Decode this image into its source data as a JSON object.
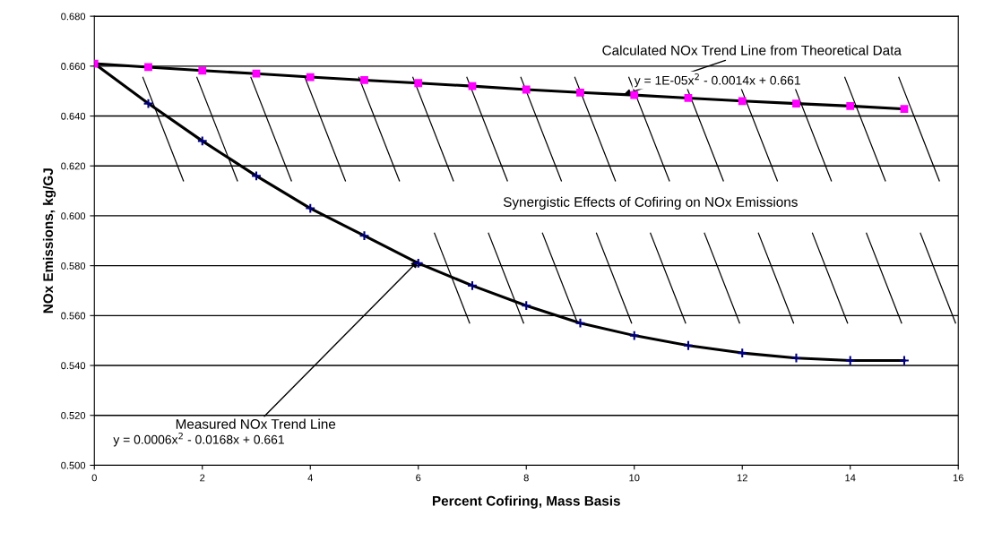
{
  "chart_data": {
    "type": "scatter",
    "xlabel": "Percent Cofiring, Mass Basis",
    "ylabel": "NOx Emissions, kg/GJ",
    "series": [
      {
        "type": "line",
        "color": "#000000",
        "x": [
          0,
          1,
          2,
          3,
          4,
          5,
          6,
          7,
          8,
          9,
          10,
          11,
          12,
          13,
          14,
          15
        ],
        "values": [
          0.661,
          0.645,
          0.63,
          0.616,
          0.603,
          0.592,
          0.581,
          0.572,
          0.564,
          0.557,
          0.552,
          0.548,
          0.545,
          0.543,
          0.542,
          0.542
        ]
      },
      {
        "type": "line",
        "color": "#000000",
        "x": [
          0,
          1,
          2,
          3,
          4,
          5,
          6,
          7,
          8,
          9,
          10,
          11,
          12,
          13,
          14,
          15
        ],
        "values": [
          0.661,
          0.6596,
          0.6582,
          0.657,
          0.6556,
          0.6544,
          0.6532,
          0.652,
          0.6506,
          0.6494,
          0.6484,
          0.6472,
          0.646,
          0.645,
          0.644,
          0.6428
        ]
      },
      {
        "marker": "cross",
        "color": "#000080",
        "x": [
          1,
          2,
          3,
          4,
          5,
          6,
          7,
          8,
          9,
          10,
          11,
          12,
          13,
          14,
          15
        ],
        "values": [
          0.645,
          0.63,
          0.616,
          0.603,
          0.592,
          0.581,
          0.572,
          0.564,
          0.557,
          0.552,
          0.548,
          0.545,
          0.543,
          0.542,
          0.542
        ]
      },
      {
        "marker": "square",
        "color": "#ff00ff",
        "x": [
          0,
          1,
          2,
          3,
          4,
          5,
          6,
          7,
          8,
          9,
          10,
          11,
          12,
          13,
          14,
          15
        ],
        "values": [
          0.661,
          0.6596,
          0.6582,
          0.657,
          0.6556,
          0.6544,
          0.6532,
          0.652,
          0.6506,
          0.6494,
          0.6484,
          0.6472,
          0.646,
          0.645,
          0.644,
          0.6428
        ]
      }
    ],
    "annotations": [
      {
        "text": "Calculated NOx Trend Line from Theoretical Data",
        "x": 9.8,
        "y": 0.6485
      },
      "y = 1E-05x$^{2}$ - 0.0014x + 0.661",
      "Synergistic Effects of Cofiring on NOx Emissions",
      {
        "text": "Measured NOx Trend Line",
        "x": 6.0,
        "y": 0.582
      },
      "y = 0.0006x$^{2}$ - 0.0168x + 0.661"
    ],
    "xlim": [
      0,
      16
    ],
    "xticks": [
      0,
      2,
      4,
      6,
      8,
      10,
      12,
      14,
      16
    ],
    "ylim": [
      0.5,
      0.68
    ],
    "yticks": [
      {
        "value": 0.5,
        "label": "0.500"
      },
      {
        "value": 0.52,
        "label": "0.520"
      },
      {
        "value": 0.54,
        "label": "0.540"
      },
      {
        "value": 0.56,
        "label": "0.560"
      },
      {
        "value": 0.58,
        "label": "0.580"
      },
      {
        "value": 0.6,
        "label": "0.600"
      },
      {
        "value": 0.62,
        "label": "0.620"
      },
      {
        "value": 0.64,
        "label": "0.640"
      },
      {
        "value": 0.66,
        "label": "0.660"
      },
      {
        "value": 0.68,
        "label": "0.680"
      }
    ],
    "grid": "y",
    "legend": false
  }
}
